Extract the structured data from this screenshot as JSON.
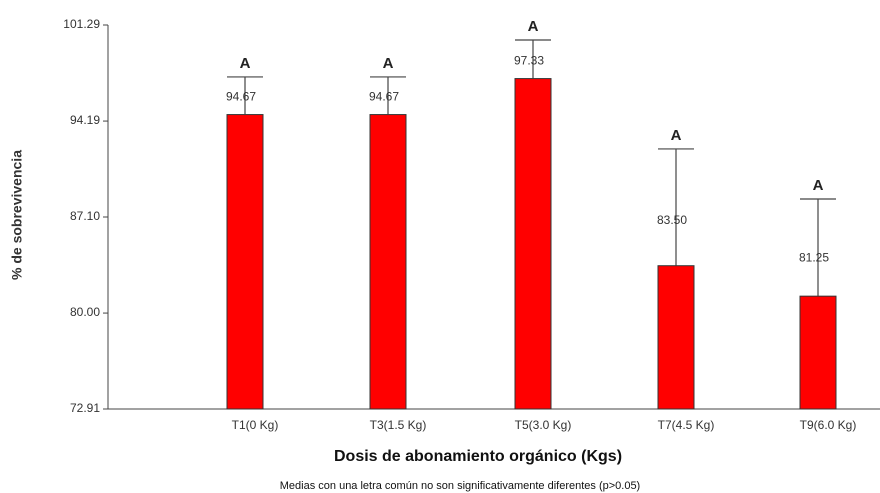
{
  "chart_data": {
    "type": "bar",
    "categories": [
      "T1(0 Kg)",
      "T3(1.5 Kg)",
      "T5(3.0 Kg)",
      "T7(4.5 Kg)",
      "T9(6.0 Kg)"
    ],
    "values": [
      94.67,
      94.67,
      97.33,
      83.5,
      81.25
    ],
    "value_labels": [
      "94.67",
      "94.67",
      "97.33",
      "83.50",
      "81.25"
    ],
    "errors": [
      2.78,
      2.78,
      2.85,
      8.63,
      7.18
    ],
    "letters": [
      "A",
      "A",
      "A",
      "A",
      "A"
    ],
    "color": "#ff0000",
    "ylim": [
      72.91,
      101.29
    ],
    "yticks": [
      72.91,
      {
        "value": 80,
        "label": "80.00"
      },
      {
        "value": 87.1,
        "label": "87.10"
      },
      94.19,
      101.29
    ],
    "ylabel": "% de sobrevivencia",
    "xlabel": "Dosis de abonamiento orgánico (Kgs)",
    "note": "Medias con una letra común no son significativamente diferentes (p>0.05)"
  }
}
